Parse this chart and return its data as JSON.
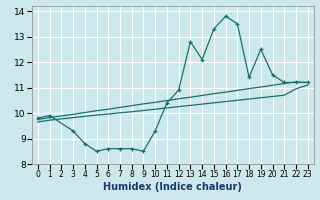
{
  "title": "",
  "xlabel": "Humidex (Indice chaleur)",
  "ylabel": "",
  "bg_color": "#cce8ec",
  "grid_color": "#ffffff",
  "line_color": "#1a6e6a",
  "xlim": [
    -0.5,
    23.5
  ],
  "ylim": [
    8,
    14.2
  ],
  "xticks": [
    0,
    1,
    2,
    3,
    4,
    5,
    6,
    7,
    8,
    9,
    10,
    11,
    12,
    13,
    14,
    15,
    16,
    17,
    18,
    19,
    20,
    21,
    22,
    23
  ],
  "yticks": [
    8,
    9,
    10,
    11,
    12,
    13,
    14
  ],
  "series1_x": [
    0,
    1,
    3,
    4,
    5,
    6,
    7,
    8,
    9,
    10,
    11,
    12,
    13,
    14,
    15,
    16,
    17,
    18,
    19,
    20,
    21,
    22,
    23
  ],
  "series1_y": [
    9.8,
    9.9,
    9.3,
    8.8,
    8.5,
    8.6,
    8.6,
    8.6,
    8.5,
    9.3,
    10.4,
    10.9,
    12.8,
    12.1,
    13.3,
    13.8,
    13.5,
    11.4,
    12.5,
    11.5,
    11.2,
    11.2,
    11.2
  ],
  "series2_x": [
    0,
    1,
    3,
    4,
    5,
    6,
    7,
    8,
    9,
    10,
    11,
    12,
    13,
    14,
    15,
    16,
    17,
    18,
    19,
    20,
    21,
    22,
    23
  ],
  "series2_y": [
    9.75,
    9.82,
    9.95,
    10.02,
    10.09,
    10.15,
    10.22,
    10.29,
    10.36,
    10.42,
    10.49,
    10.56,
    10.62,
    10.69,
    10.76,
    10.82,
    10.89,
    10.96,
    11.02,
    11.09,
    11.16,
    11.22,
    11.2
  ],
  "series3_x": [
    0,
    1,
    3,
    4,
    5,
    6,
    7,
    8,
    9,
    10,
    11,
    12,
    13,
    14,
    15,
    16,
    17,
    18,
    19,
    20,
    21,
    22,
    23
  ],
  "series3_y": [
    9.65,
    9.72,
    9.82,
    9.87,
    9.92,
    9.96,
    10.01,
    10.05,
    10.1,
    10.15,
    10.2,
    10.25,
    10.3,
    10.35,
    10.4,
    10.45,
    10.5,
    10.55,
    10.6,
    10.65,
    10.7,
    10.95,
    11.1
  ],
  "xlabel_color": "#1a3a6e",
  "xlabel_fontsize": 7
}
